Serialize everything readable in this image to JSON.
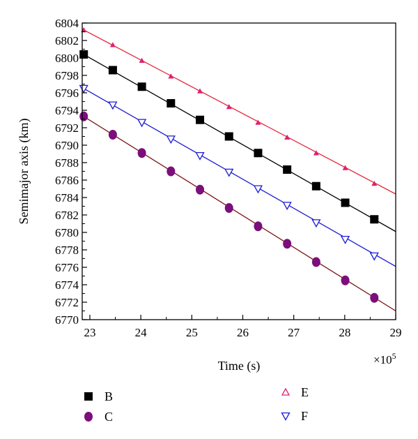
{
  "chart_data": {
    "type": "scatter",
    "title": "",
    "xlabel": "Time (s)",
    "ylabel": "Semimajor axis (km)",
    "x_multiplier_label": "×10",
    "x_multiplier_exponent": "5",
    "xlim": [
      22.85,
      29
    ],
    "ylim": [
      6770,
      6804
    ],
    "x_ticks": [
      23,
      24,
      25,
      26,
      27,
      28,
      29
    ],
    "y_ticks": [
      6770,
      6772,
      6774,
      6776,
      6778,
      6780,
      6782,
      6784,
      6786,
      6788,
      6790,
      6792,
      6794,
      6796,
      6798,
      6800,
      6802,
      6804
    ],
    "x_tick_labels": [
      "23",
      "24",
      "25",
      "26",
      "27",
      "28",
      "29"
    ],
    "y_tick_labels": [
      "6770",
      "6772",
      "6774",
      "6776",
      "6778",
      "6780",
      "6782",
      "6784",
      "6786",
      "6788",
      "6790",
      "6792",
      "6794",
      "6796",
      "6798",
      "6800",
      "6802",
      "6804"
    ],
    "grid": false,
    "legend_position": "bottom",
    "series": [
      {
        "name": "B",
        "marker": "square",
        "marker_color": "#000000",
        "line_color": "#000000",
        "x": [
          22.88,
          23.45,
          24.02,
          24.59,
          25.16,
          25.73,
          26.3,
          26.87,
          27.44,
          28.01,
          28.58
        ],
        "y": [
          6800.4,
          6798.6,
          6796.7,
          6794.8,
          6792.9,
          6791.0,
          6789.1,
          6787.2,
          6785.3,
          6783.4,
          6781.5
        ],
        "line": [
          [
            22.85,
            6800.5
          ],
          [
            29,
            6780.1
          ]
        ]
      },
      {
        "name": "C",
        "marker": "circle",
        "marker_color": "#7b0f7b",
        "line_color": "#7a1010",
        "x": [
          22.88,
          23.45,
          24.02,
          24.59,
          25.16,
          25.73,
          26.3,
          26.87,
          27.44,
          28.01,
          28.58
        ],
        "y": [
          6793.3,
          6791.2,
          6789.1,
          6787.0,
          6784.9,
          6782.8,
          6780.7,
          6778.7,
          6776.6,
          6774.5,
          6772.5
        ],
        "line": [
          [
            22.85,
            6793.4
          ],
          [
            29,
            6771.0
          ]
        ]
      },
      {
        "name": "E",
        "marker": "triangle-up",
        "marker_color": "#e0206e",
        "line_color": "#e8253a",
        "x": [
          22.88,
          23.45,
          24.02,
          24.59,
          25.16,
          25.73,
          26.3,
          26.87,
          27.44,
          28.01,
          28.58
        ],
        "y": [
          6803.2,
          6801.5,
          6799.7,
          6797.9,
          6796.2,
          6794.4,
          6792.6,
          6790.9,
          6789.1,
          6787.4,
          6785.6
        ],
        "line": [
          [
            22.85,
            6803.3
          ],
          [
            29,
            6784.4
          ]
        ]
      },
      {
        "name": "F",
        "marker": "triangle-down",
        "marker_color": "#1c1cd6",
        "line_color": "#1c1cd6",
        "x": [
          22.88,
          23.45,
          24.02,
          24.59,
          25.16,
          25.73,
          26.3,
          26.87,
          27.44,
          28.01,
          28.58
        ],
        "y": [
          6796.5,
          6794.6,
          6792.6,
          6790.7,
          6788.8,
          6786.9,
          6785.0,
          6783.1,
          6781.1,
          6779.2,
          6777.3
        ],
        "line": [
          [
            22.85,
            6796.6
          ],
          [
            29,
            6776.1
          ]
        ]
      }
    ]
  }
}
